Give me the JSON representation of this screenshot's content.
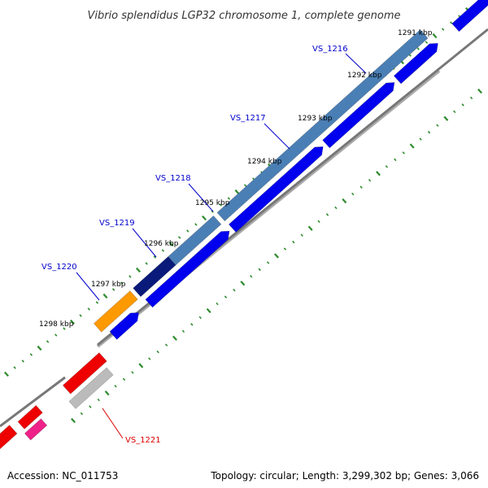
{
  "title": "Vibrio splendidus LGP32 chromosome 1, complete genome",
  "footer": {
    "accession": "Accession: NC_011753",
    "topology": "Topology: circular; Length: 3,299,302 bp; Genes: 3,066"
  },
  "colors": {
    "backbone": "#777777",
    "tick": "#2e8b2e",
    "label_blue": "#0000cc",
    "label_red": "#dd0000",
    "cds_blue": "#0000ee",
    "steelblue": "#4a7fb5",
    "navy": "#0a1a7a",
    "orange": "#ff9900",
    "red": "#ee0000",
    "gray": "#bbbbbb",
    "pink": "#ee2288"
  },
  "scale_labels": [
    "1291 kbp",
    "1292 kbp",
    "1293 kbp",
    "1294 kbp",
    "1295 kbp",
    "1296 kbp",
    "1297 kbp",
    "1298 kbp"
  ],
  "gene_labels": [
    {
      "text": "VS_1216",
      "color": "label_blue"
    },
    {
      "text": "VS_1217",
      "color": "label_blue"
    },
    {
      "text": "VS_1218",
      "color": "label_blue"
    },
    {
      "text": "VS_1219",
      "color": "label_blue"
    },
    {
      "text": "VS_1220",
      "color": "label_blue"
    },
    {
      "text": "VS_1221",
      "color": "label_red"
    }
  ],
  "features": [
    {
      "name": "outer-gene-vs1216",
      "track": "outer",
      "color": "steelblue",
      "label": "VS_1216"
    },
    {
      "name": "outer-gene-vs1217",
      "track": "outer",
      "color": "steelblue",
      "label": "VS_1217"
    },
    {
      "name": "outer-gene-vs1218",
      "track": "outer",
      "color": "steelblue",
      "label": "VS_1218"
    },
    {
      "name": "outer-gene-vs1219",
      "track": "outer",
      "color": "navy",
      "label": "VS_1219"
    },
    {
      "name": "outer-gene-vs1220",
      "track": "outer",
      "color": "orange",
      "label": "VS_1220"
    },
    {
      "name": "inner-cds-1",
      "track": "inner",
      "color": "cds_blue"
    },
    {
      "name": "inner-cds-2",
      "track": "inner",
      "color": "cds_blue"
    },
    {
      "name": "inner-cds-3",
      "track": "inner",
      "color": "cds_blue"
    },
    {
      "name": "inner-cds-4",
      "track": "inner",
      "color": "cds_blue"
    },
    {
      "name": "inner-cds-5",
      "track": "inner",
      "color": "cds_blue"
    },
    {
      "name": "inner-cds-6",
      "track": "inner",
      "color": "cds_blue"
    },
    {
      "name": "lower-red-1",
      "track": "outer",
      "color": "red"
    },
    {
      "name": "lower-gray-vs1221",
      "track": "inner",
      "color": "gray",
      "label": "VS_1221"
    },
    {
      "name": "lower-red-2",
      "track": "outer",
      "color": "red"
    },
    {
      "name": "lower-red-3",
      "track": "outer",
      "color": "red"
    },
    {
      "name": "lower-pink",
      "track": "inner",
      "color": "pink"
    }
  ]
}
